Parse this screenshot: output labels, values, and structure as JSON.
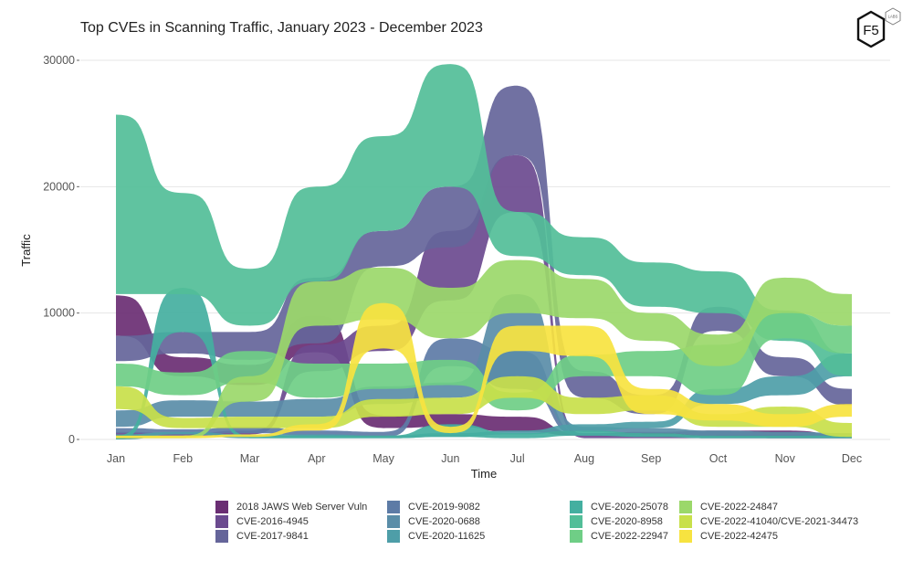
{
  "chart_data": {
    "type": "area",
    "subtype": "ranked-ribbon",
    "title": "Top CVEs in Scanning Traffic, January 2023 - December 2023",
    "xlabel": "Time",
    "ylabel": "Traffic",
    "categories": [
      "Jan",
      "Feb",
      "Mar",
      "Apr",
      "May",
      "Jun",
      "Jul",
      "Aug",
      "Sep",
      "Oct",
      "Nov",
      "Dec"
    ],
    "ylim": [
      0,
      30000
    ],
    "yticks": [
      0,
      10000,
      20000,
      30000
    ],
    "grid": true,
    "legend_position": "bottom",
    "series": [
      {
        "name": "2018 JAWS Web Server Vuln",
        "color": "#6A2E73",
        "bands": [
          [
            8200,
            11400
          ],
          [
            5000,
            6500
          ],
          [
            4300,
            5900
          ],
          [
            6900,
            9800
          ],
          [
            900,
            1900
          ],
          [
            1000,
            2000
          ],
          [
            600,
            1800
          ],
          [
            300,
            500
          ],
          [
            200,
            600
          ],
          [
            200,
            700
          ],
          [
            100,
            700
          ],
          [
            100,
            300
          ]
        ]
      },
      {
        "name": "CVE-2016-4945",
        "color": "#6B4A8F",
        "bands": [
          [
            300,
            600
          ],
          [
            300,
            500
          ],
          [
            400,
            700
          ],
          [
            5400,
            7500
          ],
          [
            7000,
            9000
          ],
          [
            11000,
            16500
          ],
          [
            18000,
            22500
          ],
          [
            100,
            400
          ],
          [
            100,
            300
          ],
          [
            100,
            300
          ],
          [
            100,
            300
          ],
          [
            100,
            200
          ]
        ]
      },
      {
        "name": "CVE-2017-9841",
        "color": "#65659A",
        "bands": [
          [
            6200,
            8200
          ],
          [
            6800,
            8500
          ],
          [
            6300,
            8500
          ],
          [
            7600,
            12800
          ],
          [
            13700,
            16500
          ],
          [
            15200,
            20000
          ],
          [
            22500,
            28000
          ],
          [
            3300,
            5400
          ],
          [
            2000,
            3500
          ],
          [
            8600,
            10500
          ],
          [
            5000,
            6500
          ],
          [
            2700,
            4000
          ]
        ]
      },
      {
        "name": "CVE-2019-9082",
        "color": "#5D7BA6",
        "bands": [
          [
            500,
            900
          ],
          [
            400,
            800
          ],
          [
            500,
            1000
          ],
          [
            300,
            700
          ],
          [
            200,
            600
          ],
          [
            5800,
            8000
          ],
          [
            4000,
            7000
          ],
          [
            300,
            500
          ],
          [
            200,
            400
          ],
          [
            100,
            300
          ],
          [
            100,
            300
          ],
          [
            100,
            300
          ]
        ]
      },
      {
        "name": "CVE-2020-0688",
        "color": "#5A8DA8",
        "bands": [
          [
            1000,
            2300
          ],
          [
            1800,
            3100
          ],
          [
            1800,
            3000
          ],
          [
            1800,
            3200
          ],
          [
            2800,
            4200
          ],
          [
            3300,
            4500
          ],
          [
            5000,
            11500
          ],
          [
            600,
            1000
          ],
          [
            500,
            900
          ],
          [
            300,
            700
          ],
          [
            300,
            600
          ],
          [
            200,
            500
          ]
        ]
      },
      {
        "name": "CVE-2020-11625",
        "color": "#4E9EA8",
        "bands": [
          [
            0,
            400
          ],
          [
            400,
            600
          ],
          [
            100,
            400
          ],
          [
            100,
            400
          ],
          [
            100,
            300
          ],
          [
            200,
            500
          ],
          [
            400,
            700
          ],
          [
            700,
            1200
          ],
          [
            900,
            1400
          ],
          [
            2800,
            4000
          ],
          [
            3500,
            5000
          ],
          [
            5000,
            6800
          ]
        ]
      },
      {
        "name": "CVE-2020-25078",
        "color": "#44AFA0",
        "bands": [
          [
            0,
            300
          ],
          [
            8500,
            12000
          ],
          [
            100,
            300
          ],
          [
            100,
            300
          ],
          [
            100,
            300
          ],
          [
            200,
            1200
          ],
          [
            100,
            500
          ],
          [
            300,
            700
          ],
          [
            200,
            500
          ],
          [
            100,
            300
          ],
          [
            100,
            300
          ],
          [
            100,
            300
          ]
        ]
      },
      {
        "name": "CVE-2020-8958",
        "color": "#52BE98",
        "bands": [
          [
            11500,
            25700
          ],
          [
            11500,
            19500
          ],
          [
            9000,
            13500
          ],
          [
            12500,
            20000
          ],
          [
            16500,
            24000
          ],
          [
            20000,
            29700
          ],
          [
            14500,
            18000
          ],
          [
            13000,
            16000
          ],
          [
            10500,
            14000
          ],
          [
            10000,
            13300
          ],
          [
            7800,
            10200
          ],
          [
            5000,
            6800
          ]
        ]
      },
      {
        "name": "CVE-2022-22947",
        "color": "#6FCE86",
        "bands": [
          [
            4200,
            6000
          ],
          [
            3500,
            5300
          ],
          [
            4500,
            7000
          ],
          [
            3300,
            6000
          ],
          [
            4000,
            6000
          ],
          [
            4300,
            6300
          ],
          [
            2300,
            3700
          ],
          [
            5000,
            6700
          ],
          [
            5000,
            7000
          ],
          [
            3500,
            7500
          ],
          [
            8000,
            10000
          ],
          [
            6800,
            9000
          ]
        ]
      },
      {
        "name": "CVE-2022-24847",
        "color": "#9BD86A",
        "bands": [
          [
            100,
            300
          ],
          [
            100,
            300
          ],
          [
            3000,
            5000
          ],
          [
            9000,
            12500
          ],
          [
            9500,
            13600
          ],
          [
            8000,
            12000
          ],
          [
            10000,
            14200
          ],
          [
            9600,
            12700
          ],
          [
            7800,
            10000
          ],
          [
            5800,
            8300
          ],
          [
            10000,
            12800
          ],
          [
            9000,
            11500
          ]
        ]
      },
      {
        "name": "CVE-2022-41040/CVE-2021-34473",
        "color": "#C8E04A",
        "bands": [
          [
            2400,
            4200
          ],
          [
            900,
            1700
          ],
          [
            900,
            1800
          ],
          [
            900,
            1800
          ],
          [
            1800,
            3200
          ],
          [
            2000,
            3300
          ],
          [
            3300,
            5000
          ],
          [
            2000,
            3300
          ],
          [
            2300,
            3500
          ],
          [
            1000,
            2000
          ],
          [
            1000,
            2600
          ],
          [
            200,
            1300
          ]
        ]
      },
      {
        "name": "CVE-2022-42475",
        "color": "#F7E340",
        "bands": [
          [
            100,
            300
          ],
          [
            100,
            300
          ],
          [
            200,
            400
          ],
          [
            700,
            1200
          ],
          [
            7200,
            10800
          ],
          [
            500,
            1000
          ],
          [
            7000,
            9000
          ],
          [
            6600,
            9000
          ],
          [
            2000,
            4000
          ],
          [
            1500,
            2800
          ],
          [
            1000,
            2000
          ],
          [
            1800,
            2800
          ]
        ]
      }
    ]
  },
  "legend": {
    "columns": [
      [
        "2018 JAWS Web Server Vuln",
        "CVE-2016-4945",
        "CVE-2017-9841"
      ],
      [
        "CVE-2019-9082",
        "CVE-2020-0688",
        "CVE-2020-11625"
      ],
      [
        "CVE-2020-25078",
        "CVE-2020-8958",
        "CVE-2022-22947"
      ],
      [
        "CVE-2022-24847",
        "CVE-2022-41040/CVE-2021-34473",
        "CVE-2022-42475"
      ]
    ]
  },
  "logo": {
    "main": "F5",
    "badge": "LABS"
  }
}
